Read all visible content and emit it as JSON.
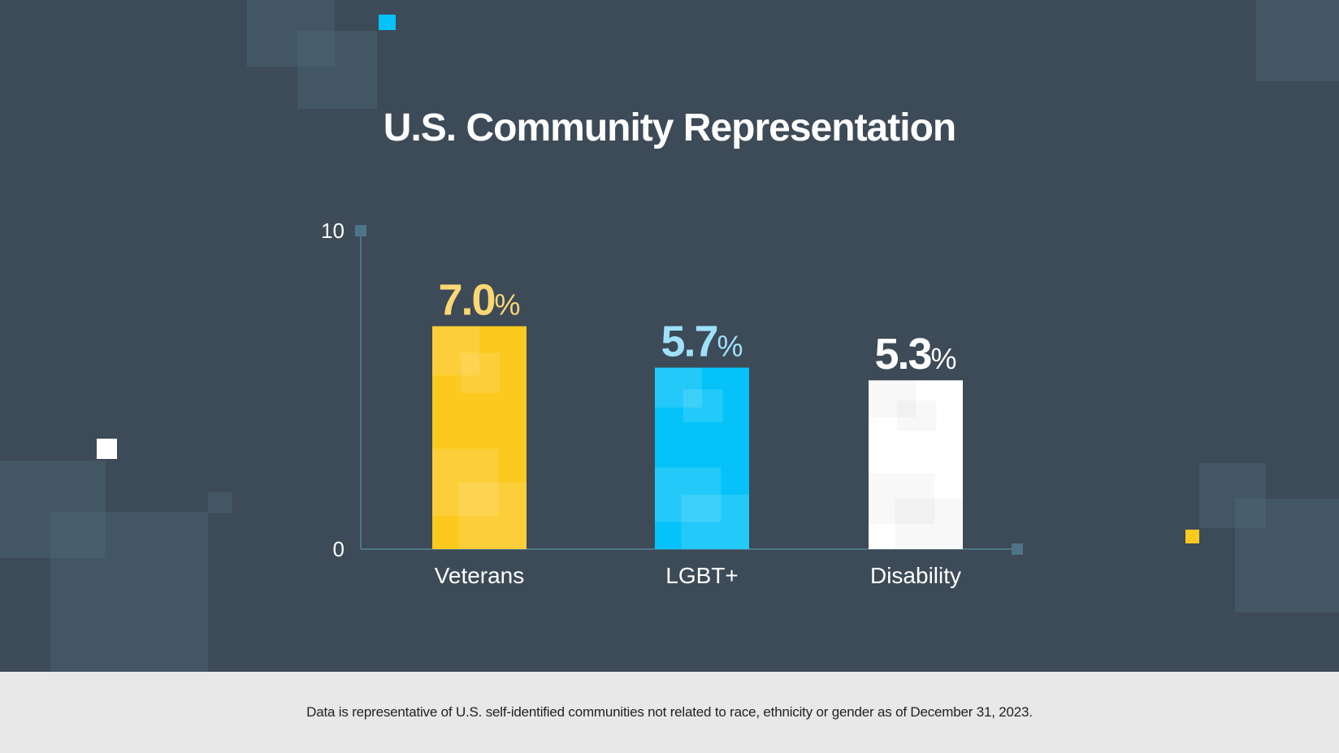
{
  "chart_data": {
    "type": "bar",
    "title": "U.S. Community Representation",
    "categories": [
      "Veterans",
      "LGBT+",
      "Disability"
    ],
    "values": [
      7.0,
      5.7,
      5.3
    ],
    "value_labels": [
      "7.0",
      "5.7",
      "5.3"
    ],
    "unit": "%",
    "ylim": [
      0,
      10
    ],
    "yticks": [
      "0",
      "10"
    ],
    "grid": false,
    "colors": [
      "#fcc91f",
      "#05c3f9",
      "#ffffff"
    ],
    "label_colors": [
      "#fdd773",
      "#9fe1fb",
      "#ffffff"
    ],
    "axis_color": "#4e7488"
  },
  "footnote": "Data is representative of U.S. self-identified communities not related to race, ethnicity or gender as of December 31, 2023."
}
